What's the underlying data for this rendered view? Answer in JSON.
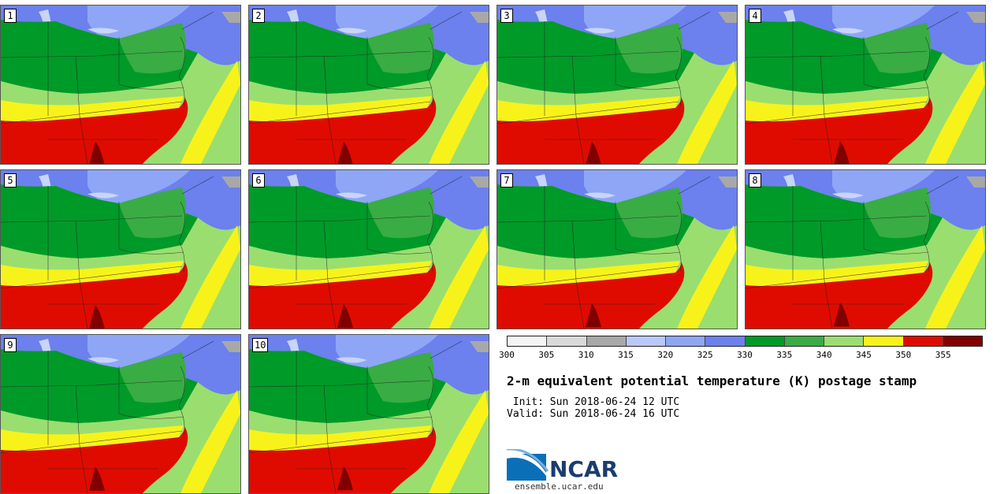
{
  "colorbar": {
    "colors": [
      "#f3f3f3",
      "#d9d9d9",
      "#a8a8a8",
      "#b8c8f8",
      "#8ea6f5",
      "#6c80ee",
      "#009a28",
      "#39ac44",
      "#9ade70",
      "#f7f31a",
      "#e00b00",
      "#800000"
    ],
    "ticks": [
      "300",
      "305",
      "310",
      "315",
      "320",
      "325",
      "330",
      "335",
      "340",
      "345",
      "350",
      "355"
    ]
  },
  "panels": [
    {
      "label": "1"
    },
    {
      "label": "2"
    },
    {
      "label": "3"
    },
    {
      "label": "4"
    },
    {
      "label": "5"
    },
    {
      "label": "6"
    },
    {
      "label": "7"
    },
    {
      "label": "8"
    },
    {
      "label": "9"
    },
    {
      "label": "10"
    }
  ],
  "map_fields": {
    "blue_light": "#b8c8f8",
    "blue_mid": "#8ea6f5",
    "blue_dark": "#6c80ee",
    "green_dark": "#009a28",
    "green_mid": "#39ac44",
    "green_light": "#9ade70",
    "yellow": "#f7f31a",
    "red": "#e00b00",
    "maroon": "#800000",
    "gray": "#a8a8a8",
    "water": "#c8d4f8"
  },
  "title": "2-m equivalent potential temperature (K) postage stamp",
  "init": " Init: Sun 2018-06-24 12 UTC",
  "valid": "Valid: Sun 2018-06-24 16 UTC",
  "logo": {
    "text": "NCAR",
    "url": "ensemble.ucar.edu"
  }
}
